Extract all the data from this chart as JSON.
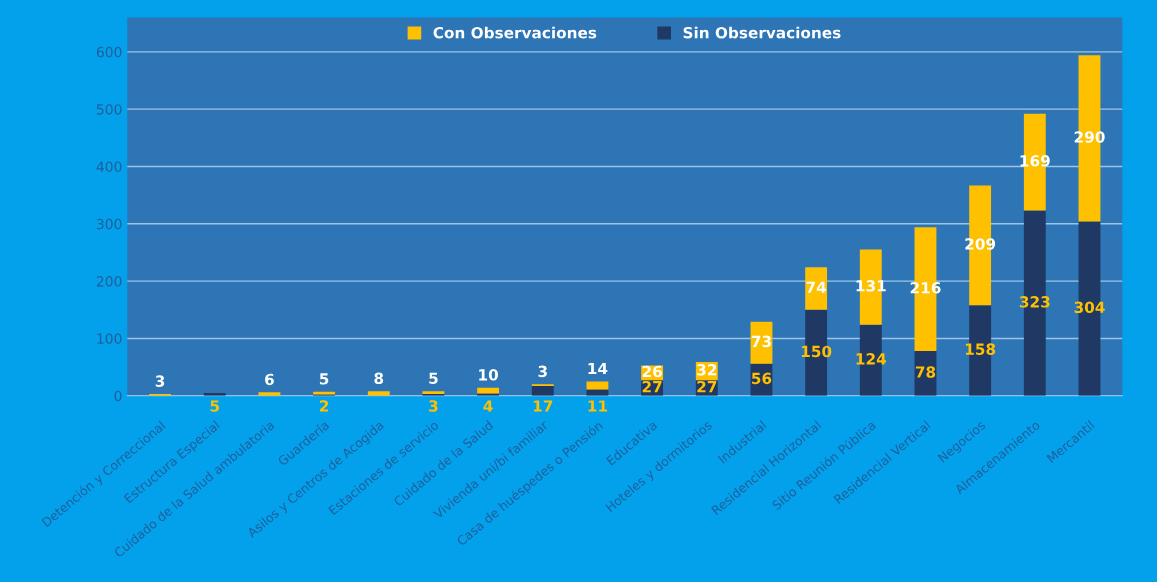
{
  "chart_data": {
    "type": "bar",
    "stacked": true,
    "categories": [
      "Detención y Correccional",
      "Estructura Especial",
      "Cuidado de la Salud ambulatoria",
      "Guardería",
      "Asilos y Centros de Acogida",
      "Estaciones de servicio",
      "Cuidado de la Salud",
      "Vivienda uni/bi familiar",
      "Casa de huéspedes o Pensión",
      "Educativa",
      "Hoteles y dormitorios",
      "Industrial",
      "Residencial Horizontal",
      "Sitio Reunión Pública",
      "Residencial Vertical",
      "Negocios",
      "Almacenamiento",
      "Mercantil"
    ],
    "series": [
      {
        "name": "Sin Observaciones",
        "color": "#1f3864",
        "values": [
          null,
          5,
          null,
          2,
          null,
          3,
          4,
          17,
          11,
          27,
          27,
          56,
          150,
          124,
          78,
          158,
          323,
          304
        ]
      },
      {
        "name": "Con Observaciones",
        "color": "#ffc000",
        "values": [
          3,
          null,
          6,
          5,
          8,
          5,
          10,
          3,
          14,
          26,
          32,
          73,
          74,
          131,
          216,
          209,
          169,
          290
        ]
      }
    ],
    "ylim": [
      0,
      660
    ],
    "yticks": [
      0,
      100,
      200,
      300,
      400,
      500,
      600
    ],
    "grid": "y",
    "legend": "top",
    "data_labels": true
  }
}
